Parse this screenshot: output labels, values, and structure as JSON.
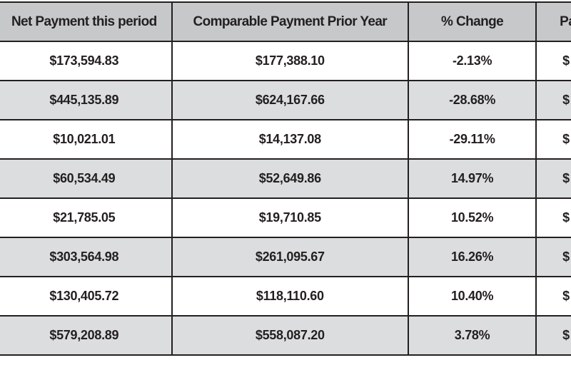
{
  "table": {
    "headers": [
      "Net Payment this period",
      "Comparable Payment Prior Year",
      "% Change",
      "Pa"
    ],
    "rows": [
      [
        "$173,594.83",
        "$177,388.10",
        "-2.13%",
        "$"
      ],
      [
        "$445,135.89",
        "$624,167.66",
        "-28.68%",
        "$"
      ],
      [
        "$10,021.01",
        "$14,137.08",
        "-29.11%",
        "$"
      ],
      [
        "$60,534.49",
        "$52,649.86",
        "14.97%",
        "$"
      ],
      [
        "$21,785.05",
        "$19,710.85",
        "10.52%",
        "$"
      ],
      [
        "$303,564.98",
        "$261,095.67",
        "16.26%",
        "$"
      ],
      [
        "$130,405.72",
        "$118,110.60",
        "10.40%",
        "$"
      ],
      [
        "$579,208.89",
        "$558,087.20",
        "3.78%",
        "$"
      ]
    ]
  },
  "colors": {
    "header_bg": "#c6c8ca",
    "row_alt_bg": "#dcdddf",
    "row_bg": "#ffffff",
    "border": "#231f20",
    "text": "#231f20"
  }
}
